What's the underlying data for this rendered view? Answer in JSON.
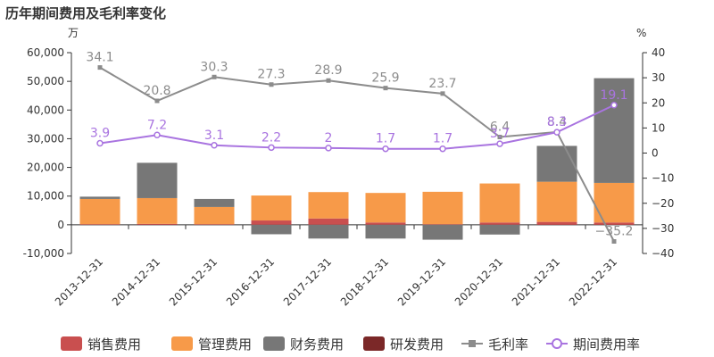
{
  "chart_data": {
    "type": "bar",
    "title": "历年期间费用及毛利率变化",
    "left_unit": "万",
    "right_unit": "%",
    "categories": [
      "2013-12-31",
      "2014-12-31",
      "2015-12-31",
      "2016-12-31",
      "2017-12-31",
      "2018-12-31",
      "2019-12-31",
      "2020-12-31",
      "2021-12-31",
      "2022-12-31"
    ],
    "left_ylim": [
      -10000,
      60000
    ],
    "left_ticks": [
      -10000,
      0,
      10000,
      20000,
      30000,
      40000,
      50000,
      60000
    ],
    "left_tick_labels": [
      "-10,000",
      "0",
      "10,000",
      "20,000",
      "30,000",
      "40,000",
      "50,000",
      "60,000"
    ],
    "right_ylim": [
      -40,
      40
    ],
    "right_ticks": [
      -40,
      -30,
      -20,
      -10,
      0,
      10,
      20,
      30,
      40
    ],
    "right_tick_labels": [
      "−40",
      "−30",
      "−20",
      "−10",
      "0",
      "10",
      "20",
      "30",
      "40"
    ],
    "series": [
      {
        "name": "销售费用",
        "kind": "bar",
        "color": "#c94f4f",
        "values": [
          200,
          300,
          200,
          1500,
          2200,
          800,
          200,
          800,
          1000,
          800
        ]
      },
      {
        "name": "管理费用",
        "kind": "bar",
        "color": "#f79a49",
        "values": [
          8800,
          9000,
          6000,
          8700,
          9200,
          10300,
          11300,
          13600,
          14000,
          13800
        ]
      },
      {
        "name": "财务费用",
        "kind": "bar",
        "color": "#777777",
        "values": [
          800,
          12300,
          2800,
          -3300,
          -4800,
          -4800,
          -5200,
          -3400,
          12500,
          36500
        ]
      },
      {
        "name": "研发费用",
        "kind": "bar",
        "color": "#7b2828",
        "values": [
          0,
          0,
          0,
          0,
          0,
          0,
          0,
          0,
          0,
          0
        ]
      },
      {
        "name": "毛利率",
        "kind": "line",
        "axis": "right",
        "color": "#8c8c8c",
        "values": [
          34.1,
          20.8,
          30.3,
          27.3,
          28.9,
          25.9,
          23.7,
          6.4,
          8.4,
          -35.2
        ],
        "labels": [
          "34.1",
          "20.8",
          "30.3",
          "27.3",
          "28.9",
          "25.9",
          "23.7",
          "6.4",
          "8.4",
          "−35.2"
        ]
      },
      {
        "name": "期间费用率",
        "kind": "line",
        "axis": "right",
        "color": "#a974e0",
        "values": [
          3.9,
          7.2,
          3.1,
          2.2,
          2.0,
          1.7,
          1.7,
          3.7,
          8.3,
          19.1
        ],
        "labels": [
          "3.9",
          "7.2",
          "3.1",
          "2.2",
          "2",
          "1.7",
          "1.7",
          "3.7",
          "8.3",
          "19.1"
        ]
      }
    ],
    "legend_position": "bottom",
    "grid": false
  }
}
